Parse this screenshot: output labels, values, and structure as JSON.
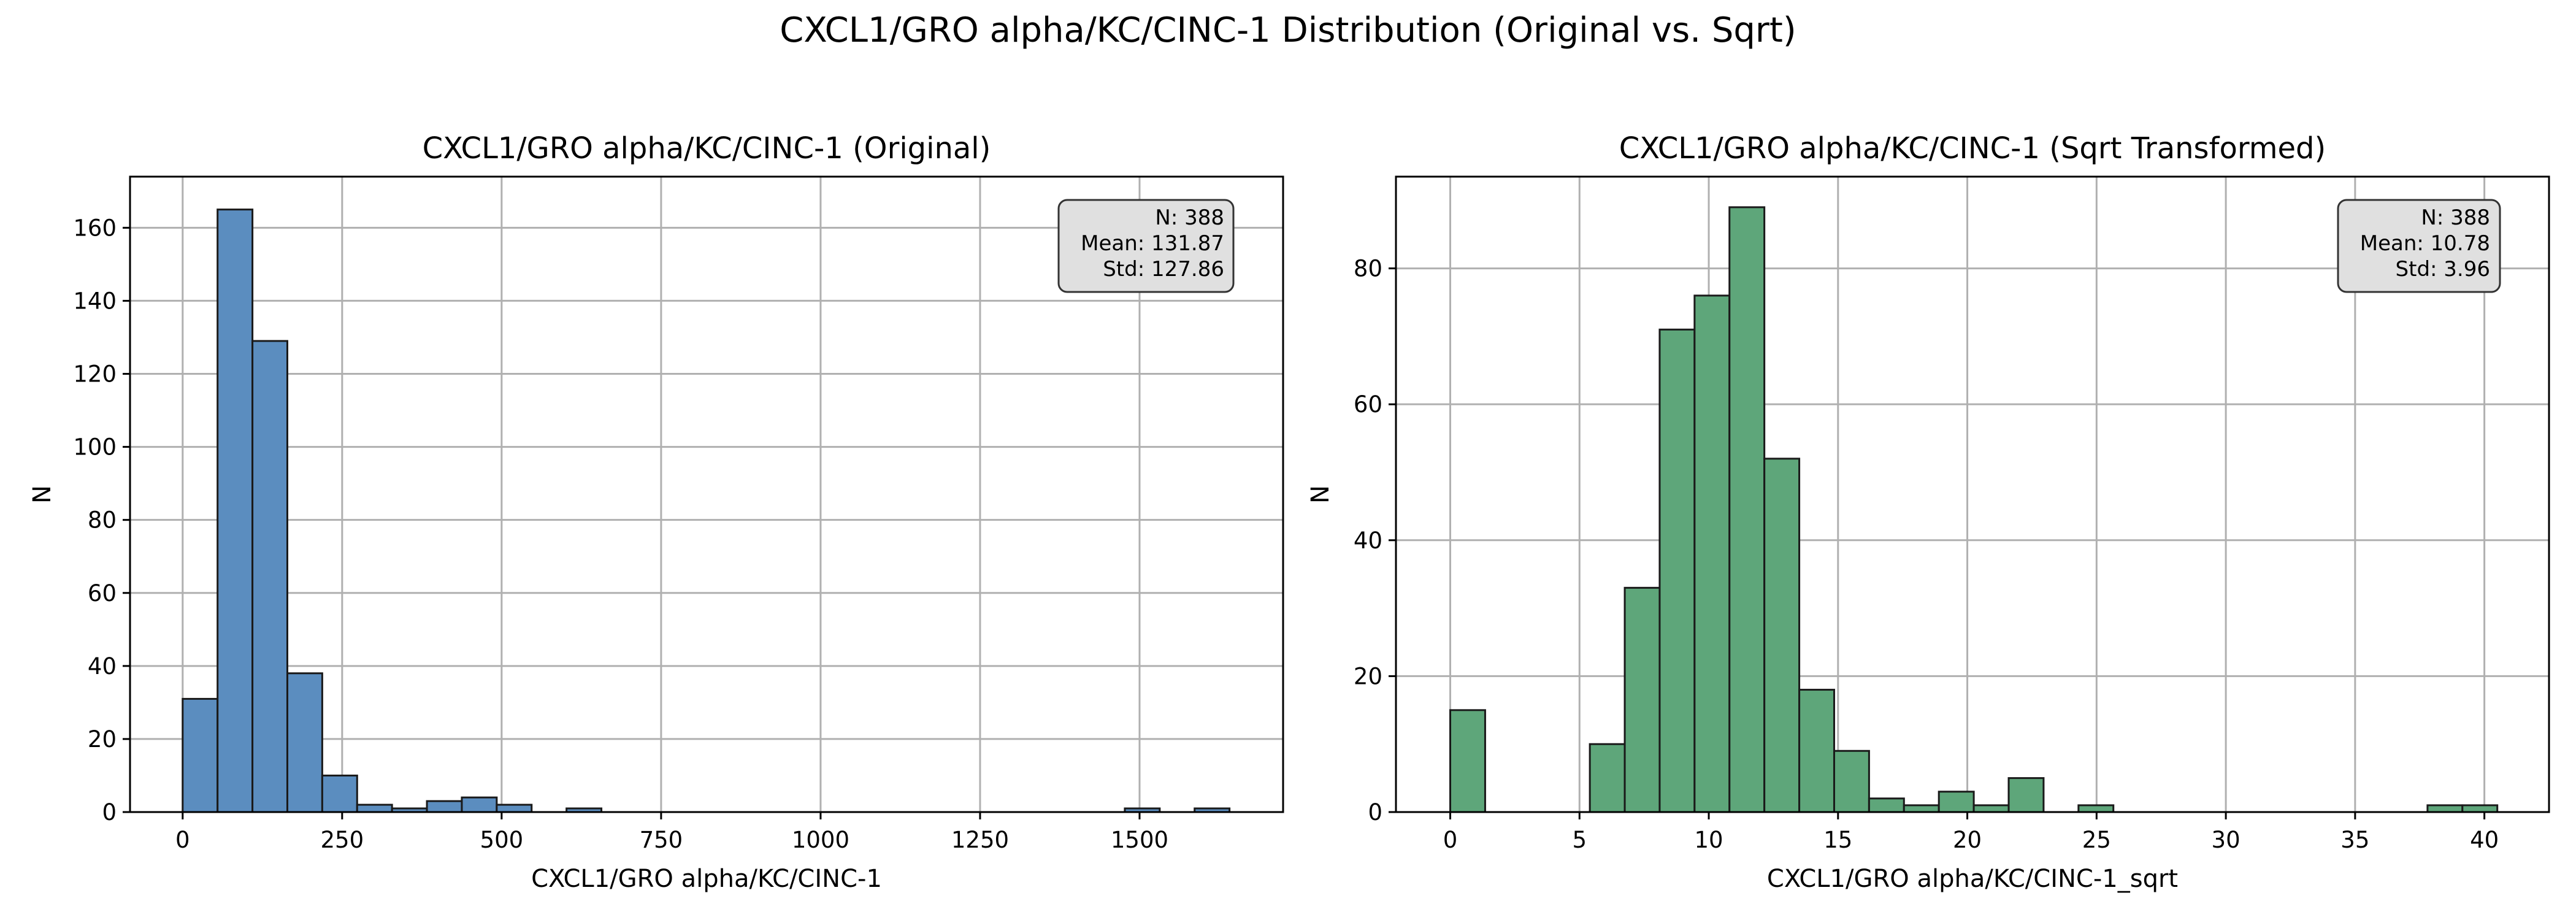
{
  "figure": {
    "suptitle": "CXCL1/GRO alpha/KC/CINC-1 Distribution (Original vs. Sqrt)"
  },
  "chart_data": [
    {
      "type": "bar",
      "title": "CXCL1/GRO alpha/KC/CINC-1 (Original)",
      "xlabel": "CXCL1/GRO alpha/KC/CINC-1",
      "ylabel": "N",
      "xlim": [
        -82.5,
        1725
      ],
      "ylim": [
        0,
        174
      ],
      "xticks": [
        0,
        250,
        500,
        750,
        1000,
        1250,
        1500
      ],
      "yticks": [
        0,
        20,
        40,
        60,
        80,
        100,
        120,
        140,
        160
      ],
      "grid": true,
      "bar_color": "#5b8dbf",
      "bin_edges": [
        0,
        54.7,
        109.4,
        164.1,
        218.8,
        273.5,
        328.2,
        382.9,
        437.6,
        492.3,
        547.0,
        601.7,
        656.4,
        711.1,
        765.8,
        820.5,
        875.2,
        929.9,
        984.6,
        1039.3,
        1094.0,
        1148.7,
        1203.4,
        1258.1,
        1312.8,
        1367.5,
        1422.2,
        1476.9,
        1531.6,
        1586.3,
        1641.0
      ],
      "counts": [
        31,
        165,
        129,
        38,
        10,
        2,
        1,
        3,
        4,
        2,
        0,
        1,
        0,
        0,
        0,
        0,
        0,
        0,
        0,
        0,
        0,
        0,
        0,
        0,
        0,
        0,
        0,
        1,
        0,
        1
      ],
      "stats": {
        "n": "N: 388",
        "mean": "Mean: 131.87",
        "std": "Std: 127.86"
      },
      "stats_position": "top-right"
    },
    {
      "type": "bar",
      "title": "CXCL1/GRO alpha/KC/CINC-1 (Sqrt Transformed)",
      "xlabel": "CXCL1/GRO alpha/KC/CINC-1_sqrt",
      "ylabel": "N",
      "xlim": [
        -2.1,
        42.5
      ],
      "ylim": [
        0,
        93.5
      ],
      "xticks": [
        0,
        5,
        10,
        15,
        20,
        25,
        30,
        35,
        40
      ],
      "yticks": [
        0,
        20,
        40,
        60,
        80
      ],
      "grid": true,
      "bar_color": "#5ea67a",
      "bin_edges": [
        0,
        1.35,
        2.7,
        4.05,
        5.4,
        6.75,
        8.1,
        9.45,
        10.8,
        12.15,
        13.5,
        14.85,
        16.2,
        17.55,
        18.9,
        20.25,
        21.6,
        22.95,
        24.3,
        25.65,
        27.0,
        28.35,
        29.7,
        31.05,
        32.4,
        33.75,
        35.1,
        36.45,
        37.8,
        39.15,
        40.5
      ],
      "counts": [
        15,
        0,
        0,
        0,
        10,
        33,
        71,
        76,
        89,
        52,
        18,
        9,
        2,
        1,
        3,
        1,
        5,
        0,
        1,
        0,
        0,
        0,
        0,
        0,
        0,
        0,
        0,
        0,
        1,
        1
      ],
      "stats": {
        "n": "N: 388",
        "mean": "Mean: 10.78",
        "std": "Std: 3.96"
      },
      "stats_position": "top-right"
    }
  ]
}
